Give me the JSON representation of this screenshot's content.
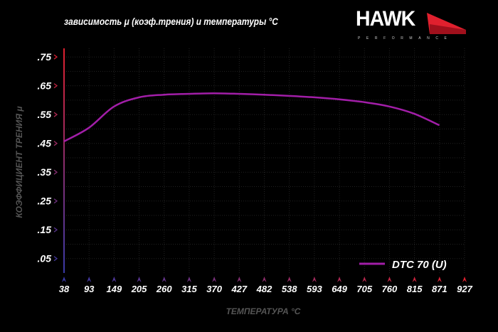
{
  "header": {
    "title": "зависимость μ (коэф.трения) и температуры °C"
  },
  "logo": {
    "name": "HAWK",
    "sub": "PERFORMANCE",
    "accent": "#e0202e"
  },
  "chart_data": {
    "type": "line",
    "title": "зависимость μ (коэф.трения) и температуры °C",
    "xlabel": "ТЕМПЕРАТУРА °C",
    "ylabel": "КОЭФФИЦИЕНТ ТРЕНИЯ μ",
    "x_ticks": [
      "38",
      "93",
      "149",
      "205",
      "260",
      "315",
      "370",
      "427",
      "482",
      "538",
      "593",
      "649",
      "705",
      "760",
      "815",
      "871",
      "927"
    ],
    "y_ticks": [
      ".75",
      ".65",
      ".55",
      ".45",
      ".35",
      ".25",
      ".15",
      ".05"
    ],
    "y_tick_values": [
      0.75,
      0.65,
      0.55,
      0.45,
      0.35,
      0.25,
      0.15,
      0.05
    ],
    "xlim": [
      38,
      927
    ],
    "ylim": [
      0.0,
      0.78
    ],
    "grid": true,
    "legend": "bottom-right",
    "series": [
      {
        "name": "DTC 70 (U)",
        "color": "#a21ea8",
        "x": [
          38,
          93,
          149,
          205,
          260,
          315,
          370,
          427,
          482,
          538,
          593,
          649,
          705,
          760,
          815,
          871
        ],
        "y": [
          0.457,
          0.504,
          0.578,
          0.61,
          0.619,
          0.622,
          0.624,
          0.622,
          0.619,
          0.615,
          0.61,
          0.603,
          0.593,
          0.578,
          0.553,
          0.513
        ]
      }
    ]
  }
}
